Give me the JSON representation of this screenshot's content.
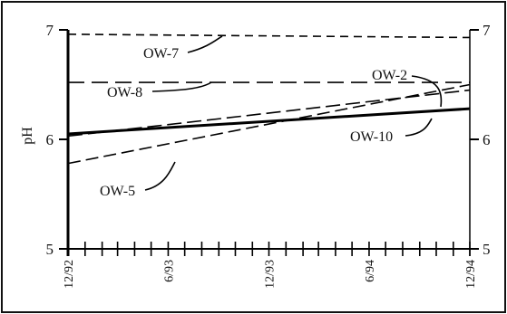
{
  "chart_data": {
    "type": "line",
    "xlabel": "",
    "ylabel": "pH",
    "ylim": [
      5,
      7
    ],
    "xlim": [
      "1992-12-01",
      "1994-12-01"
    ],
    "y_ticks": [
      "5",
      "6",
      "7"
    ],
    "x_ticks": [
      "12/92",
      "6/93",
      "12/93",
      "6/94",
      "12/94"
    ],
    "x_ticks_dates": [
      "1992-12-01",
      "1993-06-01",
      "1993-12-01",
      "1994-06-01",
      "1994-12-01"
    ],
    "grid": false,
    "series": [
      {
        "name": "OW-7",
        "style": "dashed",
        "x": [
          "1992-12-01",
          "1994-12-01"
        ],
        "y": [
          6.96,
          6.93
        ]
      },
      {
        "name": "OW-8",
        "style": "dashed",
        "x": [
          "1992-12-01",
          "1994-12-01"
        ],
        "y": [
          6.52,
          6.52
        ]
      },
      {
        "name": "OW-2",
        "style": "dashed",
        "x": [
          "1992-12-01",
          "1994-12-01"
        ],
        "y": [
          6.03,
          6.45
        ]
      },
      {
        "name": "OW-10",
        "style": "solid",
        "x": [
          "1992-12-01",
          "1994-12-01"
        ],
        "y": [
          6.05,
          6.28
        ]
      },
      {
        "name": "OW-5",
        "style": "dashed",
        "x": [
          "1992-12-01",
          "1994-12-01"
        ],
        "y": [
          5.78,
          6.5
        ]
      }
    ]
  }
}
